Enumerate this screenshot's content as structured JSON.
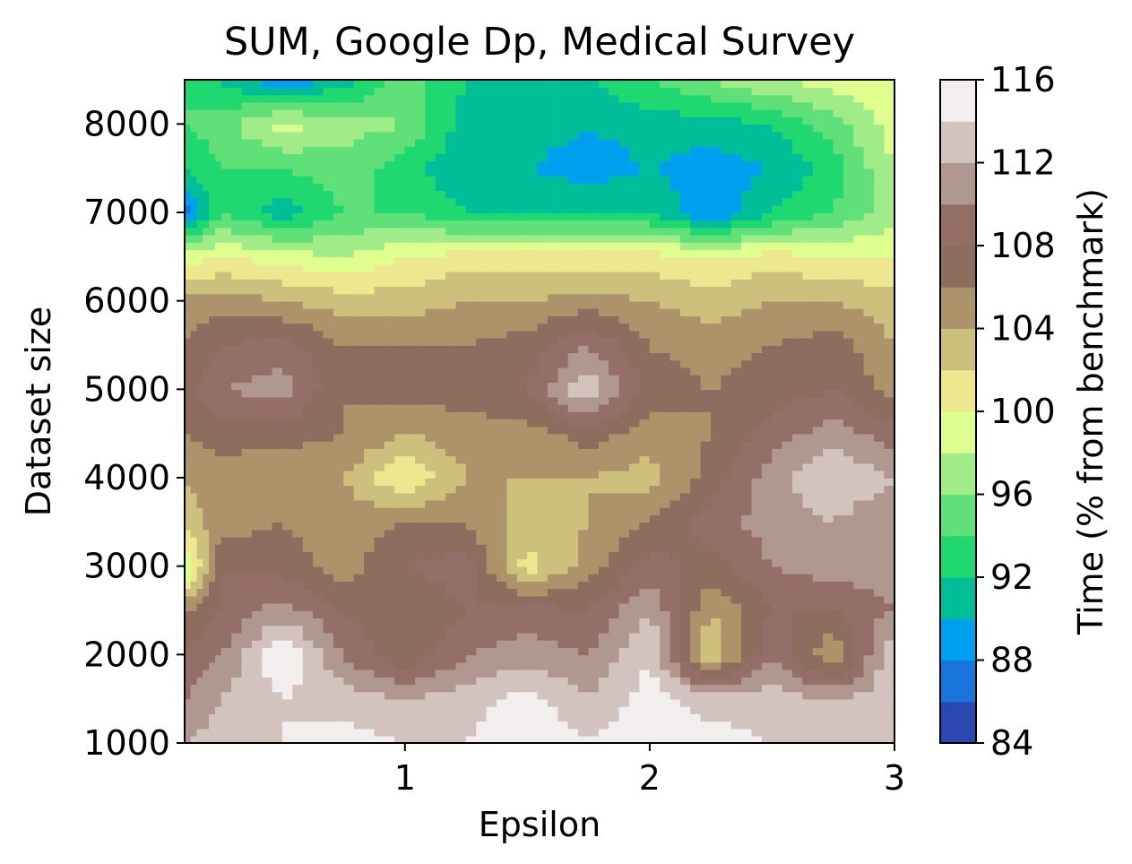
{
  "chart_data": {
    "type": "contour",
    "title": "SUM, Google Dp, Medical Survey",
    "xlabel": "Epsilon",
    "ylabel": "Dataset size",
    "xlim": [
      0.1,
      3.0
    ],
    "ylim": [
      1000,
      8500
    ],
    "xticks": [
      1,
      2,
      3
    ],
    "yticks": [
      1000,
      2000,
      3000,
      4000,
      5000,
      6000,
      7000,
      8000
    ],
    "x": [
      0.1,
      0.25,
      0.5,
      0.75,
      1.0,
      1.25,
      1.5,
      1.75,
      2.0,
      2.25,
      2.5,
      2.75,
      3.0
    ],
    "y": [
      1000,
      1500,
      2000,
      2500,
      3000,
      3500,
      4000,
      4500,
      5000,
      5500,
      6000,
      6500,
      7000,
      7500,
      8000,
      8500
    ],
    "z": [
      [
        112,
        113,
        114,
        115,
        114,
        114,
        116,
        114,
        116,
        115,
        114,
        113,
        112
      ],
      [
        110,
        112,
        114,
        113,
        112,
        113,
        115,
        112,
        115,
        113,
        113,
        112,
        113
      ],
      [
        108,
        110,
        116,
        110,
        106,
        110,
        111,
        110,
        114,
        102,
        110,
        104,
        114
      ],
      [
        106,
        108,
        111,
        108,
        106,
        108,
        109,
        108,
        112,
        104,
        108,
        108,
        110
      ],
      [
        97,
        108,
        107,
        105,
        108,
        109,
        101,
        105,
        109,
        107,
        110,
        111,
        111
      ],
      [
        103,
        105,
        106,
        105,
        106,
        106,
        103,
        104,
        106,
        109,
        111,
        112,
        110
      ],
      [
        104,
        105,
        104,
        104,
        100,
        104,
        104,
        104,
        103,
        107,
        111,
        114,
        112
      ],
      [
        106,
        107,
        107,
        106,
        104,
        105,
        105,
        107,
        105,
        106,
        109,
        111,
        109
      ],
      [
        107,
        110,
        111,
        106,
        107,
        107,
        108,
        114,
        107,
        106,
        107,
        108,
        105
      ],
      [
        106,
        108,
        109,
        106,
        106,
        106,
        107,
        110,
        106,
        105,
        106,
        107,
        104
      ],
      [
        105,
        105,
        104,
        103,
        103,
        104,
        104,
        105,
        104,
        103,
        104,
        104,
        103
      ],
      [
        99,
        100,
        99,
        98,
        100,
        101,
        101,
        101,
        101,
        100,
        101,
        100,
        100
      ],
      [
        87,
        94,
        91,
        94,
        94,
        92,
        92,
        92,
        92,
        88,
        92,
        94,
        97
      ],
      [
        92,
        94,
        94,
        95,
        93,
        90,
        90,
        89,
        90,
        89,
        90,
        93,
        98
      ],
      [
        94,
        95,
        99,
        97,
        96,
        91,
        91,
        90,
        91,
        91,
        92,
        95,
        99
      ],
      [
        94,
        92,
        88,
        91,
        95,
        92,
        91,
        92,
        94,
        96,
        98,
        99,
        100
      ]
    ],
    "colorbar": {
      "label": "Time (% from benchmark)",
      "levels": [
        84,
        86,
        88,
        90,
        92,
        94,
        96,
        98,
        100,
        102,
        104,
        106,
        108,
        110,
        112,
        114,
        116
      ],
      "ticks": [
        84,
        88,
        92,
        96,
        100,
        104,
        108,
        112,
        116
      ],
      "colors": [
        "#2b47b0",
        "#1975d9",
        "#00a0f0",
        "#00be98",
        "#20d870",
        "#60e078",
        "#a0ec88",
        "#deff8e",
        "#ede890",
        "#ccc07c",
        "#ad936a",
        "#8c6d5e",
        "#946f68",
        "#b09890",
        "#d3c3bf",
        "#f1eeed"
      ]
    },
    "grid": false,
    "legend": "none"
  }
}
